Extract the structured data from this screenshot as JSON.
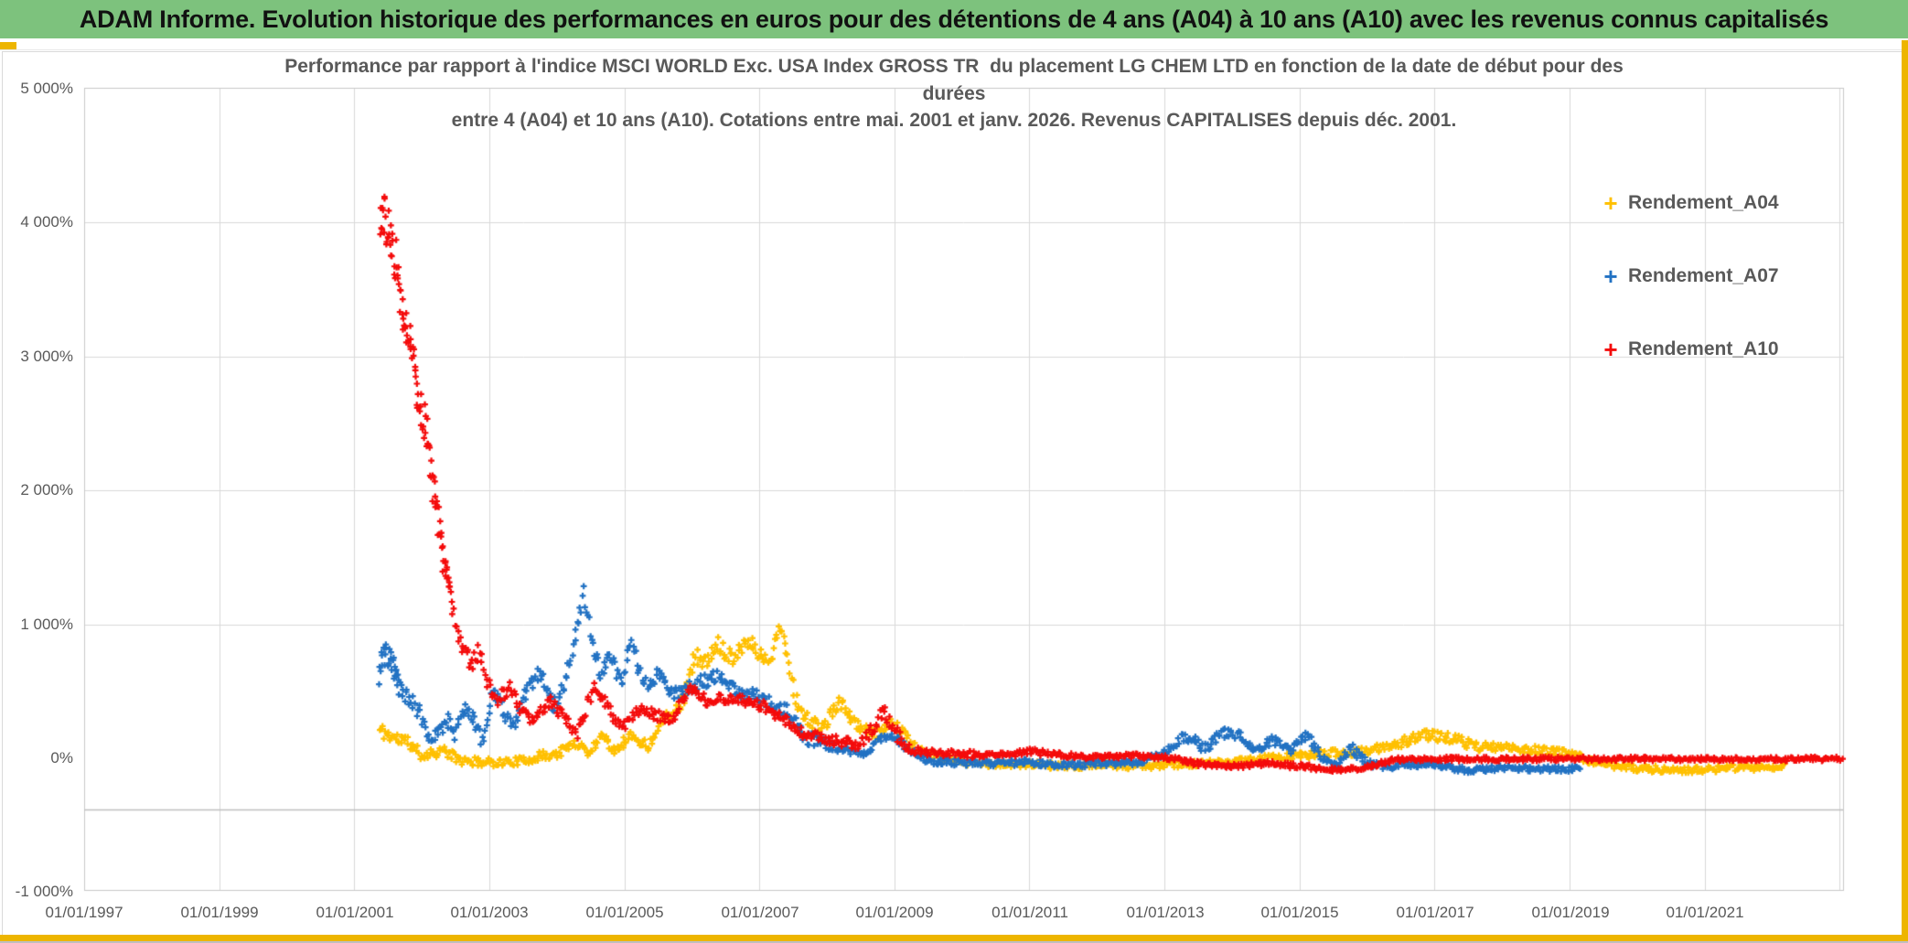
{
  "header": {
    "title": "ADAM Informe. Evolution historique des performances en euros pour des détentions de 4 ans (A04) à 10 ans (A10) avec les revenus connus capitalisés",
    "bg_color": "#7dc27d",
    "accent_gold": "#edb500"
  },
  "chart_data": {
    "type": "scatter",
    "marker": "plus",
    "title_lines": [
      "Performance par rapport à l'indice MSCI WORLD Exc. USA Index GROSS TR  du placement LG CHEM LTD en fonction de la date de début pour des",
      "durées",
      "entre 4 (A04) et 10 ans (A10). Cotations entre mai. 2001 et janv. 2026. Revenus CAPITALISES depuis déc. 2001."
    ],
    "grid": true,
    "grid_color": "#d9d9d9",
    "axis_text_color": "#595959",
    "x_axis": {
      "labels": [
        "01/01/1997",
        "01/01/1999",
        "01/01/2001",
        "01/01/2003",
        "01/01/2005",
        "01/01/2007",
        "01/01/2009",
        "01/01/2011",
        "01/01/2013",
        "01/01/2015",
        "01/01/2017",
        "01/01/2019",
        "01/01/2021"
      ],
      "start_year": 1997,
      "end_year": 2023.05,
      "tick_interval_years": 2
    },
    "y_axis": {
      "labels": [
        "5 000%",
        "4 000%",
        "3 000%",
        "2 000%",
        "1 000%",
        "0%",
        "-1 000%"
      ],
      "label_values": [
        5000,
        4000,
        3000,
        2000,
        1000,
        0,
        -1000
      ],
      "min": -1000,
      "max": 5000,
      "major_unit": 1000,
      "gridline_values": [
        4000,
        3000,
        2000,
        1000
      ],
      "axis_line_value": -385
    },
    "legend_position": "right",
    "series": [
      {
        "name": "Rendement_A04",
        "color": "#ffc000",
        "seed": 11,
        "anchors": [
          [
            2001.38,
            210,
            60
          ],
          [
            2001.6,
            150,
            50
          ],
          [
            2001.8,
            120,
            50
          ],
          [
            2002.0,
            20,
            40
          ],
          [
            2002.3,
            60,
            40
          ],
          [
            2002.6,
            -20,
            35
          ],
          [
            2002.9,
            -30,
            30
          ],
          [
            2003.2,
            -30,
            30
          ],
          [
            2003.5,
            -20,
            30
          ],
          [
            2003.8,
            20,
            35
          ],
          [
            2004.0,
            30,
            35
          ],
          [
            2004.3,
            120,
            40
          ],
          [
            2004.5,
            30,
            35
          ],
          [
            2004.65,
            190,
            40
          ],
          [
            2004.85,
            60,
            35
          ],
          [
            2005.1,
            170,
            40
          ],
          [
            2005.35,
            90,
            35
          ],
          [
            2005.6,
            320,
            50
          ],
          [
            2005.85,
            400,
            50
          ],
          [
            2006.05,
            780,
            70
          ],
          [
            2006.2,
            700,
            60
          ],
          [
            2006.4,
            850,
            60
          ],
          [
            2006.6,
            750,
            60
          ],
          [
            2006.8,
            880,
            60
          ],
          [
            2006.95,
            820,
            60
          ],
          [
            2007.15,
            700,
            60
          ],
          [
            2007.28,
            1000,
            70
          ],
          [
            2007.4,
            820,
            60
          ],
          [
            2007.55,
            420,
            60
          ],
          [
            2007.75,
            260,
            50
          ],
          [
            2007.95,
            240,
            50
          ],
          [
            2008.2,
            420,
            50
          ],
          [
            2008.45,
            240,
            40
          ],
          [
            2008.6,
            200,
            40
          ],
          [
            2008.75,
            180,
            40
          ],
          [
            2008.95,
            280,
            50
          ],
          [
            2009.15,
            180,
            40
          ],
          [
            2009.35,
            60,
            30
          ],
          [
            2009.6,
            20,
            25
          ],
          [
            2010.0,
            -30,
            25
          ],
          [
            2010.5,
            -50,
            25
          ],
          [
            2011.0,
            -40,
            25
          ],
          [
            2011.5,
            -60,
            25
          ],
          [
            2012.0,
            -50,
            25
          ],
          [
            2012.5,
            -60,
            25
          ],
          [
            2013.0,
            -50,
            25
          ],
          [
            2013.5,
            -40,
            25
          ],
          [
            2014.0,
            -30,
            25
          ],
          [
            2014.5,
            0,
            25
          ],
          [
            2015.0,
            20,
            25
          ],
          [
            2015.5,
            40,
            30
          ],
          [
            2016.0,
            50,
            30
          ],
          [
            2016.5,
            120,
            40
          ],
          [
            2016.8,
            170,
            40
          ],
          [
            2017.2,
            160,
            40
          ],
          [
            2017.6,
            90,
            35
          ],
          [
            2018.0,
            80,
            30
          ],
          [
            2018.5,
            60,
            30
          ],
          [
            2019.0,
            40,
            30
          ],
          [
            2019.3,
            -20,
            25
          ],
          [
            2019.7,
            -60,
            25
          ],
          [
            2020.2,
            -80,
            25
          ],
          [
            2020.7,
            -90,
            25
          ],
          [
            2021.2,
            -80,
            25
          ],
          [
            2021.7,
            -70,
            25
          ],
          [
            2022.2,
            -60,
            25
          ]
        ]
      },
      {
        "name": "Rendement_A07",
        "color": "#2272c3",
        "seed": 23,
        "anchors": [
          [
            2001.38,
            650,
            120
          ],
          [
            2001.45,
            790,
            80
          ],
          [
            2001.55,
            700,
            100
          ],
          [
            2001.7,
            520,
            80
          ],
          [
            2001.85,
            420,
            70
          ],
          [
            2002.0,
            300,
            60
          ],
          [
            2002.1,
            150,
            50
          ],
          [
            2002.25,
            220,
            60
          ],
          [
            2002.4,
            280,
            60
          ],
          [
            2002.5,
            170,
            50
          ],
          [
            2002.62,
            380,
            60
          ],
          [
            2002.75,
            320,
            50
          ],
          [
            2002.9,
            120,
            50
          ],
          [
            2003.05,
            480,
            60
          ],
          [
            2003.15,
            420,
            50
          ],
          [
            2003.35,
            220,
            50
          ],
          [
            2003.55,
            530,
            70
          ],
          [
            2003.75,
            650,
            60
          ],
          [
            2003.95,
            400,
            60
          ],
          [
            2004.15,
            600,
            70
          ],
          [
            2004.4,
            1230,
            80
          ],
          [
            2004.55,
            800,
            70
          ],
          [
            2004.65,
            640,
            50
          ],
          [
            2004.8,
            760,
            50
          ],
          [
            2004.95,
            540,
            50
          ],
          [
            2005.1,
            850,
            60
          ],
          [
            2005.3,
            550,
            50
          ],
          [
            2005.5,
            620,
            50
          ],
          [
            2005.7,
            480,
            50
          ],
          [
            2005.9,
            520,
            50
          ],
          [
            2006.1,
            560,
            50
          ],
          [
            2006.4,
            620,
            50
          ],
          [
            2006.65,
            500,
            50
          ],
          [
            2006.9,
            480,
            50
          ],
          [
            2007.1,
            430,
            50
          ],
          [
            2007.4,
            350,
            50
          ],
          [
            2007.7,
            150,
            50
          ],
          [
            2008.0,
            100,
            40
          ],
          [
            2008.3,
            60,
            30
          ],
          [
            2008.6,
            40,
            30
          ],
          [
            2008.9,
            180,
            40
          ],
          [
            2009.2,
            70,
            30
          ],
          [
            2009.5,
            -20,
            25
          ],
          [
            2010.0,
            -30,
            25
          ],
          [
            2010.5,
            -40,
            25
          ],
          [
            2011.0,
            -30,
            25
          ],
          [
            2011.5,
            -50,
            25
          ],
          [
            2012.0,
            -40,
            25
          ],
          [
            2012.6,
            -30,
            25
          ],
          [
            2013.0,
            40,
            30
          ],
          [
            2013.3,
            170,
            40
          ],
          [
            2013.6,
            80,
            40
          ],
          [
            2013.9,
            200,
            40
          ],
          [
            2014.1,
            180,
            40
          ],
          [
            2014.35,
            60,
            30
          ],
          [
            2014.6,
            140,
            35
          ],
          [
            2014.85,
            60,
            30
          ],
          [
            2015.1,
            170,
            40
          ],
          [
            2015.35,
            0,
            30
          ],
          [
            2015.55,
            -70,
            25
          ],
          [
            2015.75,
            90,
            35
          ],
          [
            2016.0,
            -40,
            25
          ],
          [
            2016.3,
            -60,
            25
          ],
          [
            2016.7,
            -40,
            25
          ],
          [
            2017.0,
            -50,
            25
          ],
          [
            2017.5,
            -90,
            20
          ],
          [
            2018.0,
            -70,
            20
          ],
          [
            2018.5,
            -80,
            20
          ],
          [
            2019.0,
            -80,
            20
          ],
          [
            2019.15,
            -70,
            20
          ]
        ]
      },
      {
        "name": "Rendement_A10",
        "color": "#f40b0b",
        "seed": 37,
        "anchors": [
          [
            2001.38,
            4100,
            200
          ],
          [
            2001.5,
            3950,
            180
          ],
          [
            2001.62,
            3700,
            150
          ],
          [
            2001.72,
            3300,
            120
          ],
          [
            2001.85,
            3100,
            80
          ],
          [
            2001.95,
            2750,
            200
          ],
          [
            2002.05,
            2500,
            150
          ],
          [
            2002.15,
            2100,
            120
          ],
          [
            2002.25,
            1750,
            120
          ],
          [
            2002.35,
            1400,
            100
          ],
          [
            2002.45,
            1150,
            80
          ],
          [
            2002.6,
            850,
            80
          ],
          [
            2002.75,
            700,
            60
          ],
          [
            2002.85,
            800,
            60
          ],
          [
            2003.0,
            550,
            60
          ],
          [
            2003.1,
            420,
            50
          ],
          [
            2003.3,
            540,
            50
          ],
          [
            2003.5,
            330,
            50
          ],
          [
            2003.65,
            260,
            40
          ],
          [
            2003.9,
            430,
            50
          ],
          [
            2004.1,
            300,
            50
          ],
          [
            2004.3,
            180,
            40
          ],
          [
            2004.55,
            520,
            60
          ],
          [
            2004.75,
            380,
            50
          ],
          [
            2004.95,
            230,
            40
          ],
          [
            2005.2,
            350,
            50
          ],
          [
            2005.5,
            320,
            40
          ],
          [
            2005.75,
            300,
            40
          ],
          [
            2005.95,
            520,
            50
          ],
          [
            2006.2,
            430,
            40
          ],
          [
            2006.5,
            450,
            40
          ],
          [
            2006.8,
            420,
            40
          ],
          [
            2007.0,
            400,
            40
          ],
          [
            2007.3,
            320,
            40
          ],
          [
            2007.6,
            200,
            40
          ],
          [
            2007.9,
            150,
            40
          ],
          [
            2008.2,
            120,
            40
          ],
          [
            2008.5,
            100,
            40
          ],
          [
            2008.85,
            350,
            60
          ],
          [
            2009.1,
            120,
            50
          ],
          [
            2009.4,
            40,
            30
          ],
          [
            2009.7,
            40,
            25
          ],
          [
            2010.0,
            30,
            25
          ],
          [
            2010.5,
            20,
            25
          ],
          [
            2011.0,
            50,
            25
          ],
          [
            2011.5,
            20,
            20
          ],
          [
            2012.0,
            10,
            20
          ],
          [
            2012.5,
            20,
            20
          ],
          [
            2013.0,
            10,
            20
          ],
          [
            2013.5,
            -40,
            20
          ],
          [
            2014.0,
            -60,
            20
          ],
          [
            2014.5,
            -40,
            20
          ],
          [
            2015.0,
            -60,
            20
          ],
          [
            2015.5,
            -80,
            20
          ],
          [
            2016.0,
            -70,
            20
          ],
          [
            2016.4,
            -10,
            16
          ],
          [
            2017.0,
            -5,
            16
          ],
          [
            2018.0,
            -5,
            16
          ],
          [
            2019.0,
            -5,
            16
          ],
          [
            2020.0,
            -5,
            16
          ],
          [
            2021.0,
            -5,
            16
          ],
          [
            2022.0,
            -5,
            16
          ],
          [
            2023.05,
            -5,
            16
          ]
        ]
      }
    ]
  }
}
